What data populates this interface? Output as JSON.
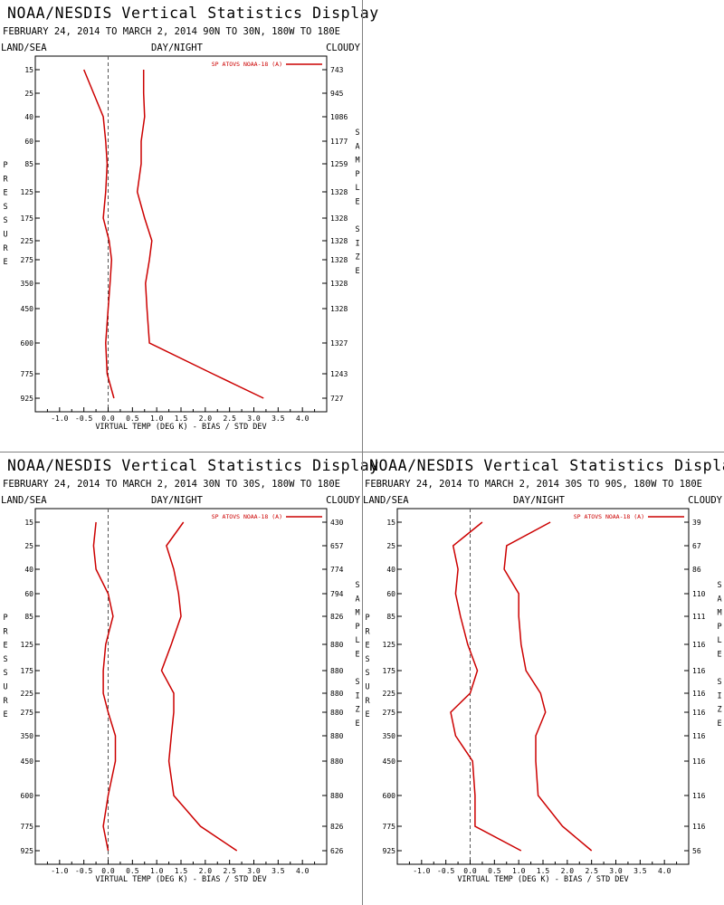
{
  "panels": [
    {
      "title": "NOAA/NESDIS Vertical Statistics Display",
      "subtitle": "FEBRUARY 24, 2014 TO MARCH 2, 2014  90N TO 30N, 180W TO 180E",
      "left_label": "LAND/SEA",
      "center_label": "DAY/NIGHT",
      "right_label": "CLOUDY"
    },
    {
      "title": "NOAA/NESDIS Vertical Statistics Display",
      "subtitle": "FEBRUARY 24, 2014 TO MARCH 2, 2014  30N TO 30S, 180W TO 180E",
      "left_label": "LAND/SEA",
      "center_label": "DAY/NIGHT",
      "right_label": "CLOUDY"
    },
    {
      "title": "NOAA/NESDIS Vertical Statistics Display",
      "subtitle": "FEBRUARY 24, 2014 TO MARCH 2, 2014  30S TO 90S, 180W TO 180E",
      "left_label": "LAND/SEA",
      "center_label": "DAY/NIGHT",
      "right_label": "CLOUDY"
    }
  ],
  "chart_data": [
    {
      "type": "line",
      "xlabel": "VIRTUAL TEMP (DEG K) - BIAS / STD DEV",
      "ylabel": "PRESSURE",
      "y2label": "SAMPLE SIZE",
      "legend": "SP ATOVS NOAA-18 (A)",
      "legend_position": "top-right",
      "xlim": [
        -1.5,
        4.5
      ],
      "xticks": [
        "-1.0",
        "-0.5",
        "0.0",
        "0.5",
        "1.0",
        "1.5",
        "2.0",
        "2.5",
        "3.0",
        "3.5",
        "4.0"
      ],
      "pressure_levels": [
        "15",
        "25",
        "40",
        "60",
        "85",
        "125",
        "175",
        "225",
        "275",
        "350",
        "450",
        "600",
        "775",
        "925"
      ],
      "sample_size": [
        "743",
        "945",
        "1086",
        "1177",
        "1259",
        "1328",
        "1328",
        "1328",
        "1328",
        "1328",
        "1328",
        "1327",
        "1243",
        "727"
      ],
      "series": [
        {
          "name": "BIAS",
          "values": [
            -0.5,
            -0.3,
            -0.1,
            -0.05,
            -0.02,
            -0.05,
            -0.1,
            0.02,
            0.07,
            0.04,
            0.0,
            -0.05,
            -0.02,
            0.12
          ]
        },
        {
          "name": "STD DEV",
          "values": [
            0.73,
            0.73,
            0.75,
            0.68,
            0.68,
            0.6,
            0.75,
            0.9,
            0.85,
            0.77,
            0.8,
            0.85,
            2.15,
            3.2
          ]
        }
      ],
      "color": "#cc0000"
    },
    {
      "type": "line",
      "xlabel": "VIRTUAL TEMP (DEG K) - BIAS / STD DEV",
      "ylabel": "PRESSURE",
      "y2label": "SAMPLE SIZE",
      "legend": "SP ATOVS NOAA-18 (A)",
      "legend_position": "top-right",
      "xlim": [
        -1.5,
        4.5
      ],
      "xticks": [
        "-1.0",
        "-0.5",
        "0.0",
        "0.5",
        "1.0",
        "1.5",
        "2.0",
        "2.5",
        "3.0",
        "3.5",
        "4.0"
      ],
      "pressure_levels": [
        "15",
        "25",
        "40",
        "60",
        "85",
        "125",
        "175",
        "225",
        "275",
        "350",
        "450",
        "600",
        "775",
        "925"
      ],
      "sample_size": [
        "430",
        "657",
        "774",
        "794",
        "826",
        "880",
        "880",
        "880",
        "880",
        "880",
        "880",
        "880",
        "826",
        "626"
      ],
      "series": [
        {
          "name": "BIAS",
          "values": [
            -0.25,
            -0.3,
            -0.25,
            0.0,
            0.1,
            -0.05,
            -0.1,
            -0.1,
            0.0,
            0.15,
            0.15,
            0.0,
            -0.1,
            0.0
          ]
        },
        {
          "name": "STD DEV",
          "values": [
            1.55,
            1.2,
            1.35,
            1.45,
            1.5,
            1.3,
            1.1,
            1.35,
            1.35,
            1.3,
            1.25,
            1.35,
            1.9,
            2.65
          ]
        }
      ],
      "color": "#cc0000"
    },
    {
      "type": "line",
      "xlabel": "VIRTUAL TEMP (DEG K) - BIAS / STD DEV",
      "ylabel": "PRESSURE",
      "y2label": "SAMPLE SIZE",
      "legend": "SP ATOVS NOAA-18 (A)",
      "legend_position": "top-right",
      "xlim": [
        -1.5,
        4.5
      ],
      "xticks": [
        "-1.0",
        "-0.5",
        "0.0",
        "0.5",
        "1.0",
        "1.5",
        "2.0",
        "2.5",
        "3.0",
        "3.5",
        "4.0"
      ],
      "pressure_levels": [
        "15",
        "25",
        "40",
        "60",
        "85",
        "125",
        "175",
        "225",
        "275",
        "350",
        "450",
        "600",
        "775",
        "925"
      ],
      "sample_size": [
        "39",
        "67",
        "86",
        "110",
        "111",
        "116",
        "116",
        "116",
        "116",
        "116",
        "116",
        "116",
        "116",
        "56"
      ],
      "series": [
        {
          "name": "BIAS",
          "values": [
            0.25,
            -0.35,
            -0.25,
            -0.3,
            -0.2,
            -0.05,
            0.15,
            0.0,
            -0.4,
            -0.3,
            0.05,
            0.1,
            0.1,
            1.05
          ]
        },
        {
          "name": "STD DEV",
          "values": [
            1.65,
            0.75,
            0.7,
            1.0,
            1.0,
            1.05,
            1.15,
            1.45,
            1.55,
            1.35,
            1.35,
            1.4,
            1.9,
            2.5
          ]
        }
      ],
      "color": "#cc0000"
    }
  ]
}
